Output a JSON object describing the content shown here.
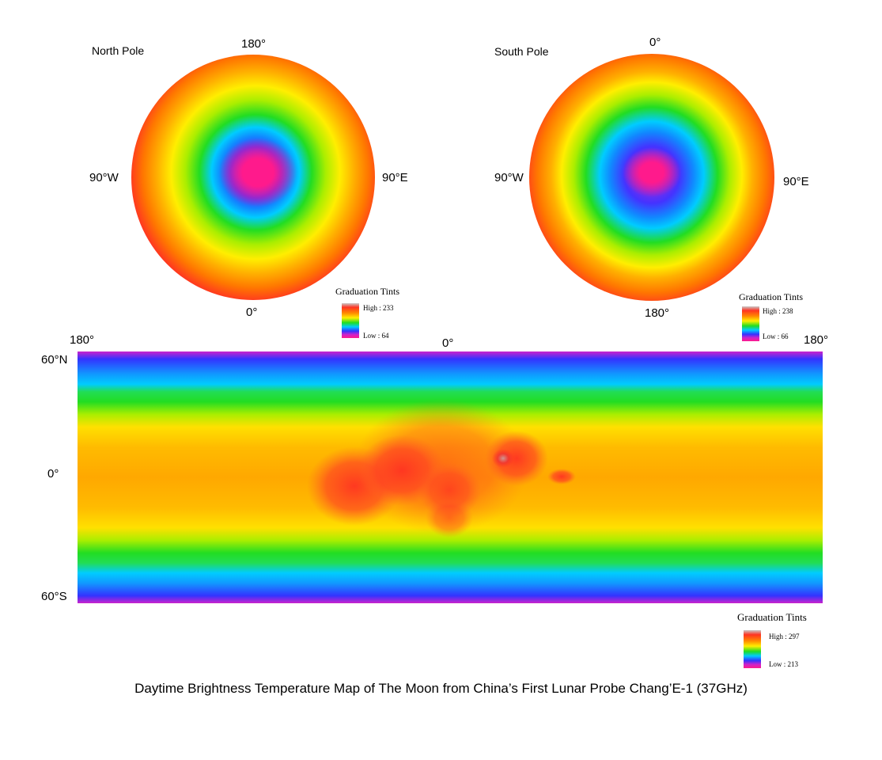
{
  "north": {
    "label": "North Pole",
    "top": "180°",
    "bottom": "0°",
    "left": "90°W",
    "right": "90°E",
    "legend": {
      "title": "Graduation Tints",
      "high": "High : 233",
      "low": "Low : 64"
    }
  },
  "south": {
    "label": "South Pole",
    "top": "0°",
    "bottom": "180°",
    "left": "90°W",
    "right": "90°E",
    "legend": {
      "title": "Graduation Tints",
      "high": "High : 238",
      "low": "Low : 66"
    }
  },
  "global_map": {
    "left_lon": "180°",
    "center_lon": "0°",
    "right_lon": "180°",
    "top_lat": "60°N",
    "mid_lat": "0°",
    "bottom_lat": "60°S",
    "legend": {
      "title": "Graduation Tints",
      "high": "High : 297",
      "low": "Low : 213"
    }
  },
  "title": "Daytime Brightness Temperature Map of The Moon from China’s First Lunar Probe Chang’E-1 (37GHz)",
  "colors": {
    "ramp": [
      "#ff1a8c",
      "#cc22cc",
      "#3333ff",
      "#00ccff",
      "#22dd22",
      "#ccee00",
      "#ffcc00",
      "#ff8800",
      "#ff3322",
      "#c8c8c8"
    ]
  }
}
